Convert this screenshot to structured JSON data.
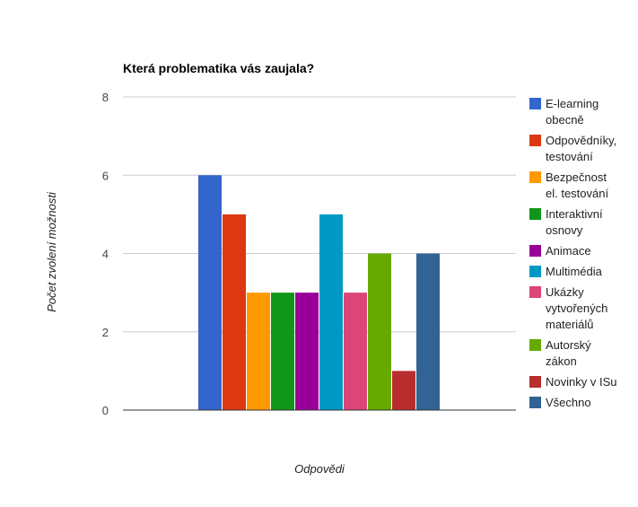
{
  "chart_data": {
    "type": "bar",
    "title": "Která problematika vás zaujala?",
    "xlabel": "Odpovědi",
    "ylabel": "Počet zvolení možnosti",
    "ylim": [
      0,
      8
    ],
    "yticks": [
      0,
      2,
      4,
      6,
      8
    ],
    "grid": true,
    "legend_position": "right",
    "series": [
      {
        "name": "E-learning obecně",
        "legend_lines": [
          "E-learning",
          "obecně"
        ],
        "value": 6,
        "color": "#3366cc"
      },
      {
        "name": "Odpovědníky, testování",
        "legend_lines": [
          "Odpovědníky,",
          "testování"
        ],
        "value": 5,
        "color": "#dc3912"
      },
      {
        "name": "Bezpečnost el. testování",
        "legend_lines": [
          "Bezpečnost",
          "el. testování"
        ],
        "value": 3,
        "color": "#ff9900"
      },
      {
        "name": "Interaktivní osnovy",
        "legend_lines": [
          "Interaktivní",
          "osnovy"
        ],
        "value": 3,
        "color": "#109618"
      },
      {
        "name": "Animace",
        "legend_lines": [
          "Animace"
        ],
        "value": 3,
        "color": "#990099"
      },
      {
        "name": "Multimédia",
        "legend_lines": [
          "Multimédia"
        ],
        "value": 5,
        "color": "#0099c6"
      },
      {
        "name": "Ukázky vytvořených materiálů",
        "legend_lines": [
          "Ukázky",
          "vytvořených",
          "materiálů"
        ],
        "value": 3,
        "color": "#dd4477"
      },
      {
        "name": "Autorský zákon",
        "legend_lines": [
          "Autorský",
          "zákon"
        ],
        "value": 4,
        "color": "#66aa00"
      },
      {
        "name": "Novinky v ISu",
        "legend_lines": [
          "Novinky v ISu"
        ],
        "value": 1,
        "color": "#b82e2e"
      },
      {
        "name": "Všechno",
        "legend_lines": [
          "Všechno"
        ],
        "value": 4,
        "color": "#316395"
      }
    ]
  }
}
